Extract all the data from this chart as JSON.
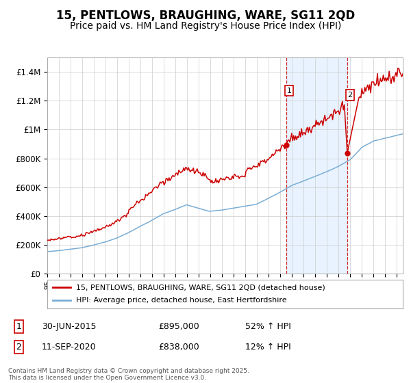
{
  "title": "15, PENTLOWS, BRAUGHING, WARE, SG11 2QD",
  "subtitle": "Price paid vs. HM Land Registry's House Price Index (HPI)",
  "title_fontsize": 12,
  "subtitle_fontsize": 10,
  "legend_line1": "15, PENTLOWS, BRAUGHING, WARE, SG11 2QD (detached house)",
  "legend_line2": "HPI: Average price, detached house, East Hertfordshire",
  "red_color": "#cc0000",
  "blue_color": "#7aadd4",
  "background_color": "#ffffff",
  "plot_bg_color": "#ffffff",
  "shaded_color": "#ddeeff",
  "sale1_date": "30-JUN-2015",
  "sale1_price": "£895,000",
  "sale1_pct": "52% ↑ HPI",
  "sale2_date": "11-SEP-2020",
  "sale2_price": "£838,000",
  "sale2_pct": "12% ↑ HPI",
  "footer": "Contains HM Land Registry data © Crown copyright and database right 2025.\nThis data is licensed under the Open Government Licence v3.0.",
  "ylim": [
    0,
    1500000
  ],
  "yticks": [
    0,
    200000,
    400000,
    600000,
    800000,
    1000000,
    1200000,
    1400000
  ],
  "ytick_labels": [
    "£0",
    "£200K",
    "£400K",
    "£600K",
    "£800K",
    "£1M",
    "£1.2M",
    "£1.4M"
  ],
  "sale1_x": 2015.5,
  "sale1_y": 895000,
  "sale2_x": 2020.72,
  "sale2_y": 838000,
  "xmin": 1995,
  "xmax": 2025.5
}
